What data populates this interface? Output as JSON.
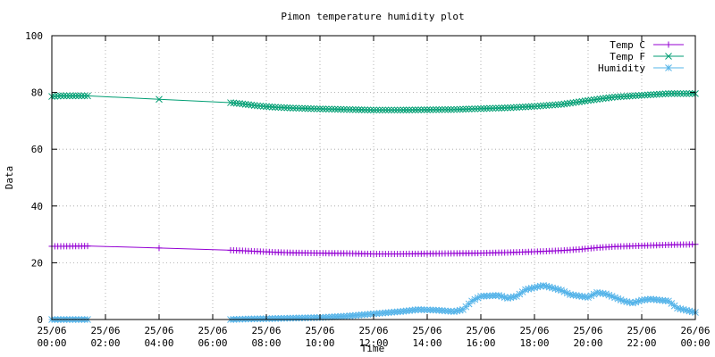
{
  "chart_data": {
    "type": "line",
    "title": "Pimon temperature   humidity plot",
    "xlabel": "Time",
    "ylabel": "Data",
    "ylim": [
      0,
      100
    ],
    "yticks": [
      "0",
      "20",
      "40",
      "60",
      "80",
      "100"
    ],
    "xlim": [
      "25/06 00:00",
      "26/06 00:00"
    ],
    "xtick_labels": [
      [
        "25/06",
        "00:00"
      ],
      [
        "25/06",
        "02:00"
      ],
      [
        "25/06",
        "04:00"
      ],
      [
        "25/06",
        "06:00"
      ],
      [
        "25/06",
        "08:00"
      ],
      [
        "25/06",
        "10:00"
      ],
      [
        "25/06",
        "12:00"
      ],
      [
        "25/06",
        "14:00"
      ],
      [
        "25/06",
        "16:00"
      ],
      [
        "25/06",
        "18:00"
      ],
      [
        "25/06",
        "20:00"
      ],
      [
        "25/06",
        "22:00"
      ],
      [
        "26/06",
        "00:00"
      ]
    ],
    "grid": true,
    "legend_position": "top-right",
    "series": [
      {
        "name": "Temp C",
        "color": "#9400d3",
        "marker": "plus",
        "points": [
          [
            "25/06 00:00",
            25.8
          ],
          [
            "25/06 00:20",
            25.8
          ],
          [
            "25/06 01:20",
            25.9
          ],
          [
            "25/06 04:00",
            25.2
          ],
          [
            "25/06 06:40",
            24.4
          ],
          [
            "25/06 07:00",
            24.3
          ],
          [
            "25/06 07:40",
            24.0
          ],
          [
            "25/06 08:20",
            23.7
          ],
          [
            "25/06 09:00",
            23.5
          ],
          [
            "25/06 10:00",
            23.4
          ],
          [
            "25/06 11:00",
            23.3
          ],
          [
            "25/06 12:00",
            23.1
          ],
          [
            "25/06 13:00",
            23.1
          ],
          [
            "25/06 14:00",
            23.2
          ],
          [
            "25/06 15:00",
            23.3
          ],
          [
            "25/06 16:00",
            23.4
          ],
          [
            "25/06 17:00",
            23.6
          ],
          [
            "25/06 18:00",
            23.9
          ],
          [
            "25/06 19:00",
            24.3
          ],
          [
            "25/06 19:40",
            24.7
          ],
          [
            "25/06 20:20",
            25.3
          ],
          [
            "25/06 21:00",
            25.7
          ],
          [
            "25/06 22:00",
            26.0
          ],
          [
            "25/06 23:00",
            26.3
          ],
          [
            "26/06 00:00",
            26.5
          ]
        ]
      },
      {
        "name": "Temp F",
        "color": "#009e73",
        "marker": "cross",
        "points": [
          [
            "25/06 00:00",
            78.6
          ],
          [
            "25/06 00:20",
            78.8
          ],
          [
            "25/06 01:20",
            78.8
          ],
          [
            "25/06 04:00",
            77.6
          ],
          [
            "25/06 06:40",
            76.4
          ],
          [
            "25/06 07:00",
            76.1
          ],
          [
            "25/06 07:40",
            75.3
          ],
          [
            "25/06 08:20",
            74.8
          ],
          [
            "25/06 09:00",
            74.5
          ],
          [
            "25/06 10:00",
            74.2
          ],
          [
            "25/06 11:00",
            74.0
          ],
          [
            "25/06 12:00",
            73.8
          ],
          [
            "25/06 13:00",
            73.8
          ],
          [
            "25/06 14:00",
            73.9
          ],
          [
            "25/06 15:00",
            74.0
          ],
          [
            "25/06 16:00",
            74.3
          ],
          [
            "25/06 17:00",
            74.6
          ],
          [
            "25/06 18:00",
            75.1
          ],
          [
            "25/06 19:00",
            75.8
          ],
          [
            "25/06 19:40",
            76.7
          ],
          [
            "25/06 20:20",
            77.6
          ],
          [
            "25/06 21:00",
            78.4
          ],
          [
            "25/06 22:00",
            79.0
          ],
          [
            "25/06 23:00",
            79.6
          ],
          [
            "26/06 00:00",
            79.6
          ]
        ]
      },
      {
        "name": "Humidity",
        "color": "#56b4e9",
        "marker": "star",
        "points": [
          [
            "25/06 00:00",
            0.0
          ],
          [
            "25/06 00:20",
            0.0
          ],
          [
            "25/06 01:20",
            0.0
          ],
          [
            "25/06 06:40",
            0.0
          ],
          [
            "25/06 07:20",
            0.2
          ],
          [
            "25/06 08:00",
            0.3
          ],
          [
            "25/06 09:00",
            0.5
          ],
          [
            "25/06 10:00",
            0.7
          ],
          [
            "25/06 11:00",
            1.2
          ],
          [
            "25/06 12:00",
            2.0
          ],
          [
            "25/06 13:00",
            2.8
          ],
          [
            "25/06 13:40",
            3.5
          ],
          [
            "25/06 14:20",
            3.3
          ],
          [
            "25/06 15:00",
            2.8
          ],
          [
            "25/06 15:20",
            3.5
          ],
          [
            "25/06 15:40",
            6.5
          ],
          [
            "25/06 16:00",
            8.2
          ],
          [
            "25/06 16:40",
            8.5
          ],
          [
            "25/06 17:00",
            7.5
          ],
          [
            "25/06 17:20",
            8.2
          ],
          [
            "25/06 17:40",
            10.5
          ],
          [
            "25/06 18:20",
            12.0
          ],
          [
            "25/06 19:00",
            10.3
          ],
          [
            "25/06 19:20",
            8.8
          ],
          [
            "25/06 20:00",
            7.8
          ],
          [
            "25/06 20:20",
            9.5
          ],
          [
            "25/06 20:40",
            9.0
          ],
          [
            "25/06 21:20",
            6.5
          ],
          [
            "25/06 21:40",
            5.8
          ],
          [
            "25/06 22:00",
            6.8
          ],
          [
            "25/06 22:20",
            7.2
          ],
          [
            "25/06 23:00",
            6.5
          ],
          [
            "25/06 23:20",
            4.0
          ],
          [
            "26/06 00:00",
            2.5
          ]
        ]
      }
    ]
  }
}
